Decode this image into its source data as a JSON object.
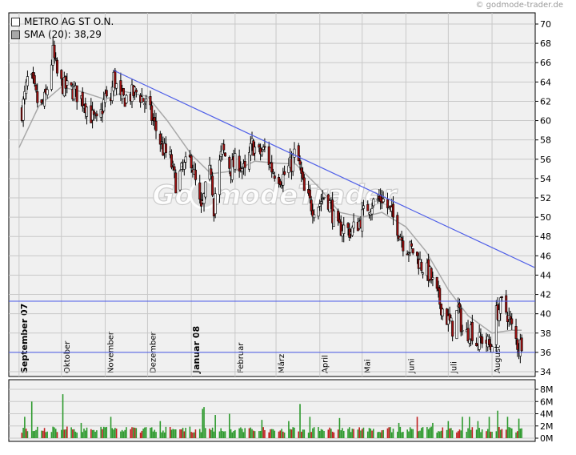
{
  "copyright": "© godmode-trader.de",
  "watermark": "GodmodeTrader",
  "legend": {
    "instrument": "METRO AG ST O.N.",
    "sma_label": "SMA (20): 38,29"
  },
  "colors": {
    "up_candle": "#ffffff",
    "down_candle": "#a01010",
    "sma_line": "#a8a8a8",
    "trendline": "#5060e8",
    "horizontal_lines": "#4a5ae8",
    "volume_bar": "#2e9a2e",
    "volume_bar_red": "#c02020",
    "panel_bg": "#f0f0f0",
    "grid": "#c8c8c8"
  },
  "chart_data": [
    {
      "type": "candlestick",
      "title": "METRO AG ST O.N.",
      "ylim": [
        34,
        70
      ],
      "y_ticks": [
        34,
        36,
        38,
        40,
        42,
        44,
        46,
        48,
        50,
        52,
        54,
        56,
        58,
        60,
        62,
        64,
        66,
        68,
        70
      ],
      "x_labels": [
        "September 07",
        "Oktober",
        "November",
        "Dezember",
        "Januar 08",
        "Februar",
        "März",
        "April",
        "Mai",
        "Juni",
        "Juli",
        "August"
      ],
      "bold_x_labels": [
        "September 07",
        "Januar 08"
      ],
      "grid": true,
      "horizontal_levels": [
        41.3,
        36.0
      ],
      "trendline": [
        {
          "date": "2007-11-07",
          "value": 65.2
        },
        {
          "date": "2008-08-31",
          "value": 44.8
        }
      ],
      "sma": {
        "name": "SMA (20)",
        "last_value": 38.29,
        "points": [
          [
            "2007-09-01",
            57.2
          ],
          [
            "2007-09-15",
            61.5
          ],
          [
            "2007-10-01",
            63.5
          ],
          [
            "2007-10-15",
            63.0
          ],
          [
            "2007-11-01",
            62.2
          ],
          [
            "2007-11-15",
            63.0
          ],
          [
            "2007-12-01",
            62.5
          ],
          [
            "2007-12-15",
            60.0
          ],
          [
            "2008-01-01",
            56.5
          ],
          [
            "2008-01-15",
            54.5
          ],
          [
            "2008-02-01",
            54.8
          ],
          [
            "2008-02-15",
            55.8
          ],
          [
            "2008-03-01",
            55.6
          ],
          [
            "2008-03-15",
            55.5
          ],
          [
            "2008-04-01",
            53.0
          ],
          [
            "2008-04-15",
            50.5
          ],
          [
            "2008-05-01",
            50.0
          ],
          [
            "2008-05-15",
            50.5
          ],
          [
            "2008-06-01",
            49.0
          ],
          [
            "2008-06-15",
            46.5
          ],
          [
            "2008-07-01",
            42.5
          ],
          [
            "2008-07-15",
            39.8
          ],
          [
            "2008-08-01",
            38.0
          ],
          [
            "2008-08-15",
            38.3
          ],
          [
            "2008-08-22",
            38.3
          ]
        ]
      },
      "price_path": [
        [
          "2007-09-01",
          59.5
        ],
        [
          "2007-09-05",
          62.5
        ],
        [
          "2007-09-08",
          65.0
        ],
        [
          "2007-09-12",
          63.0
        ],
        [
          "2007-09-16",
          61.0
        ],
        [
          "2007-09-20",
          62.5
        ],
        [
          "2007-09-25",
          67.0
        ],
        [
          "2007-09-29",
          64.0
        ],
        [
          "2007-10-03",
          63.5
        ],
        [
          "2007-10-10",
          63.0
        ],
        [
          "2007-10-17",
          62.0
        ],
        [
          "2007-10-22",
          60.5
        ],
        [
          "2007-10-27",
          59.5
        ],
        [
          "2007-11-01",
          62.5
        ],
        [
          "2007-11-04",
          61.0
        ],
        [
          "2007-11-07",
          64.5
        ],
        [
          "2007-11-12",
          62.0
        ],
        [
          "2007-11-17",
          62.5
        ],
        [
          "2007-11-24",
          63.0
        ],
        [
          "2007-12-01",
          61.5
        ],
        [
          "2007-12-06",
          59.5
        ],
        [
          "2007-12-12",
          57.0
        ],
        [
          "2007-12-17",
          56.0
        ],
        [
          "2007-12-21",
          53.5
        ],
        [
          "2007-12-26",
          55.0
        ],
        [
          "2008-01-01",
          56.0
        ],
        [
          "2008-01-04",
          53.5
        ],
        [
          "2008-01-08",
          50.5
        ],
        [
          "2008-01-12",
          53.5
        ],
        [
          "2008-01-15",
          55.0
        ],
        [
          "2008-01-17",
          51.0
        ],
        [
          "2008-01-19",
          54.0
        ],
        [
          "2008-01-23",
          57.0
        ],
        [
          "2008-01-29",
          55.0
        ],
        [
          "2008-02-03",
          56.0
        ],
        [
          "2008-02-08",
          54.5
        ],
        [
          "2008-02-13",
          57.5
        ],
        [
          "2008-02-18",
          56.5
        ],
        [
          "2008-02-22",
          57.0
        ],
        [
          "2008-02-27",
          55.0
        ],
        [
          "2008-03-05",
          54.0
        ],
        [
          "2008-03-12",
          55.5
        ],
        [
          "2008-03-15",
          57.0
        ],
        [
          "2008-03-18",
          55.0
        ],
        [
          "2008-03-21",
          52.5
        ],
        [
          "2008-03-27",
          51.0
        ],
        [
          "2008-04-01",
          51.5
        ],
        [
          "2008-04-05",
          52.5
        ],
        [
          "2008-04-09",
          51.0
        ],
        [
          "2008-04-13",
          48.5
        ],
        [
          "2008-04-17",
          49.0
        ],
        [
          "2008-04-23",
          48.5
        ],
        [
          "2008-04-29",
          49.5
        ],
        [
          "2008-05-04",
          51.0
        ],
        [
          "2008-05-09",
          51.5
        ],
        [
          "2008-05-15",
          52.0
        ],
        [
          "2008-05-21",
          50.5
        ],
        [
          "2008-05-26",
          49.0
        ],
        [
          "2008-05-31",
          47.0
        ],
        [
          "2008-06-06",
          46.5
        ],
        [
          "2008-06-12",
          45.0
        ],
        [
          "2008-06-18",
          44.0
        ],
        [
          "2008-06-24",
          41.5
        ],
        [
          "2008-06-30",
          39.5
        ],
        [
          "2008-07-04",
          38.5
        ],
        [
          "2008-07-08",
          40.5
        ],
        [
          "2008-07-12",
          37.5
        ],
        [
          "2008-07-17",
          38.5
        ],
        [
          "2008-07-21",
          37.0
        ],
        [
          "2008-07-26",
          37.5
        ],
        [
          "2008-07-31",
          36.5
        ],
        [
          "2008-08-04",
          40.0
        ],
        [
          "2008-08-08",
          41.0
        ],
        [
          "2008-08-12",
          40.0
        ],
        [
          "2008-08-16",
          38.0
        ],
        [
          "2008-08-20",
          36.5
        ],
        [
          "2008-08-23",
          37.5
        ]
      ]
    },
    {
      "type": "bar",
      "ylim": [
        0,
        9
      ],
      "y_ticks": [
        0,
        2,
        4,
        6,
        8
      ],
      "y_tick_labels": [
        "0M",
        "2M",
        "4M",
        "6M",
        "8M"
      ],
      "volume_spikes": [
        [
          "2007-09-05",
          3.5
        ],
        [
          "2007-09-10",
          6.0
        ],
        [
          "2007-09-30",
          7.3
        ],
        [
          "2007-10-02",
          7.2
        ],
        [
          "2007-10-15",
          2.5
        ],
        [
          "2007-11-05",
          3.5
        ],
        [
          "2007-11-25",
          3.2
        ],
        [
          "2007-12-10",
          2.8
        ],
        [
          "2007-12-29",
          3.0
        ],
        [
          "2008-01-09",
          4.8
        ],
        [
          "2008-01-10",
          5.1
        ],
        [
          "2008-01-18",
          3.8
        ],
        [
          "2008-01-28",
          4.0
        ],
        [
          "2008-02-20",
          3.0
        ],
        [
          "2008-03-10",
          2.8
        ],
        [
          "2008-03-18",
          5.6
        ],
        [
          "2008-03-25",
          3.5
        ],
        [
          "2008-04-15",
          3.3
        ],
        [
          "2008-05-03",
          2.8
        ],
        [
          "2008-05-27",
          2.5
        ],
        [
          "2008-06-09",
          3.5
        ],
        [
          "2008-06-20",
          2.5
        ],
        [
          "2008-07-01",
          2.8
        ],
        [
          "2008-07-11",
          3.5
        ],
        [
          "2008-07-16",
          3.5
        ],
        [
          "2008-07-22",
          2.8
        ],
        [
          "2008-07-30",
          3.5
        ],
        [
          "2008-08-05",
          4.5
        ],
        [
          "2008-08-12",
          3.5
        ],
        [
          "2008-08-20",
          3.2
        ]
      ]
    }
  ]
}
